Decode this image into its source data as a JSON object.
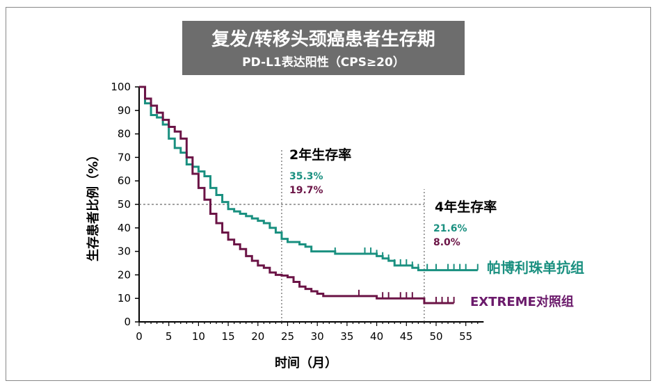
{
  "chart_data": {
    "type": "line",
    "title": "复发/转移头颈癌患者生存期",
    "subtitle": "PD-L1表达阳性（CPS≥20）",
    "xlabel": "时间（月）",
    "ylabel": "生存患者比例（%）",
    "xlim": [
      0,
      57
    ],
    "ylim": [
      0,
      100
    ],
    "xticks": [
      0,
      5,
      10,
      15,
      20,
      25,
      30,
      35,
      40,
      45,
      50,
      55
    ],
    "yticks": [
      0,
      10,
      20,
      30,
      40,
      50,
      60,
      70,
      80,
      90,
      100
    ],
    "grid": false,
    "reference_lines": {
      "y": 50,
      "x": [
        24,
        48
      ]
    },
    "annotations": [
      {
        "label": "2年生存率",
        "values": [
          "35.3%",
          "19.7%"
        ]
      },
      {
        "label": "4年生存率",
        "values": [
          "21.6%",
          "8.0%"
        ]
      }
    ],
    "series": [
      {
        "name": "帕博利珠单抗组",
        "color": "#1a9080",
        "x": [
          0,
          1,
          2,
          3,
          4,
          5,
          6,
          7,
          8,
          9,
          10,
          11,
          12,
          13,
          14,
          15,
          16,
          17,
          18,
          19,
          20,
          21,
          22,
          23,
          24,
          25,
          27,
          28,
          29,
          33,
          40,
          41,
          42,
          43,
          46,
          47,
          57
        ],
        "y": [
          100,
          93,
          88,
          87,
          84,
          78,
          74,
          72,
          67,
          66,
          64,
          62,
          57,
          54,
          51,
          48,
          47,
          46,
          45,
          44,
          43,
          42,
          40,
          38,
          35.3,
          34,
          33,
          32,
          30,
          29,
          28,
          27,
          26,
          24,
          23,
          22,
          22
        ],
        "censored": [
          33,
          38,
          39,
          40,
          41,
          42,
          43,
          44,
          45,
          46,
          47,
          48.5,
          50,
          52,
          53,
          54,
          55,
          57
        ]
      },
      {
        "name": "EXTREME对照组",
        "color": "#6b1446",
        "x": [
          0,
          1,
          2,
          3,
          4,
          5,
          6,
          7,
          8,
          9,
          10,
          11,
          12,
          13,
          14,
          15,
          16,
          17,
          18,
          19,
          20,
          21,
          22,
          23,
          24,
          25,
          26,
          27,
          28,
          29,
          30,
          31,
          40,
          48,
          53
        ],
        "y": [
          100,
          95,
          92,
          89,
          86,
          83,
          81,
          78,
          70,
          63,
          57,
          52,
          46,
          42,
          38,
          35,
          33,
          31,
          28,
          26,
          24,
          23,
          21,
          20,
          19.7,
          19,
          17,
          15,
          14,
          13,
          12,
          11,
          10,
          8,
          8
        ],
        "censored": [
          37,
          41,
          42,
          44,
          45,
          46,
          50,
          51,
          52,
          53
        ]
      }
    ]
  }
}
